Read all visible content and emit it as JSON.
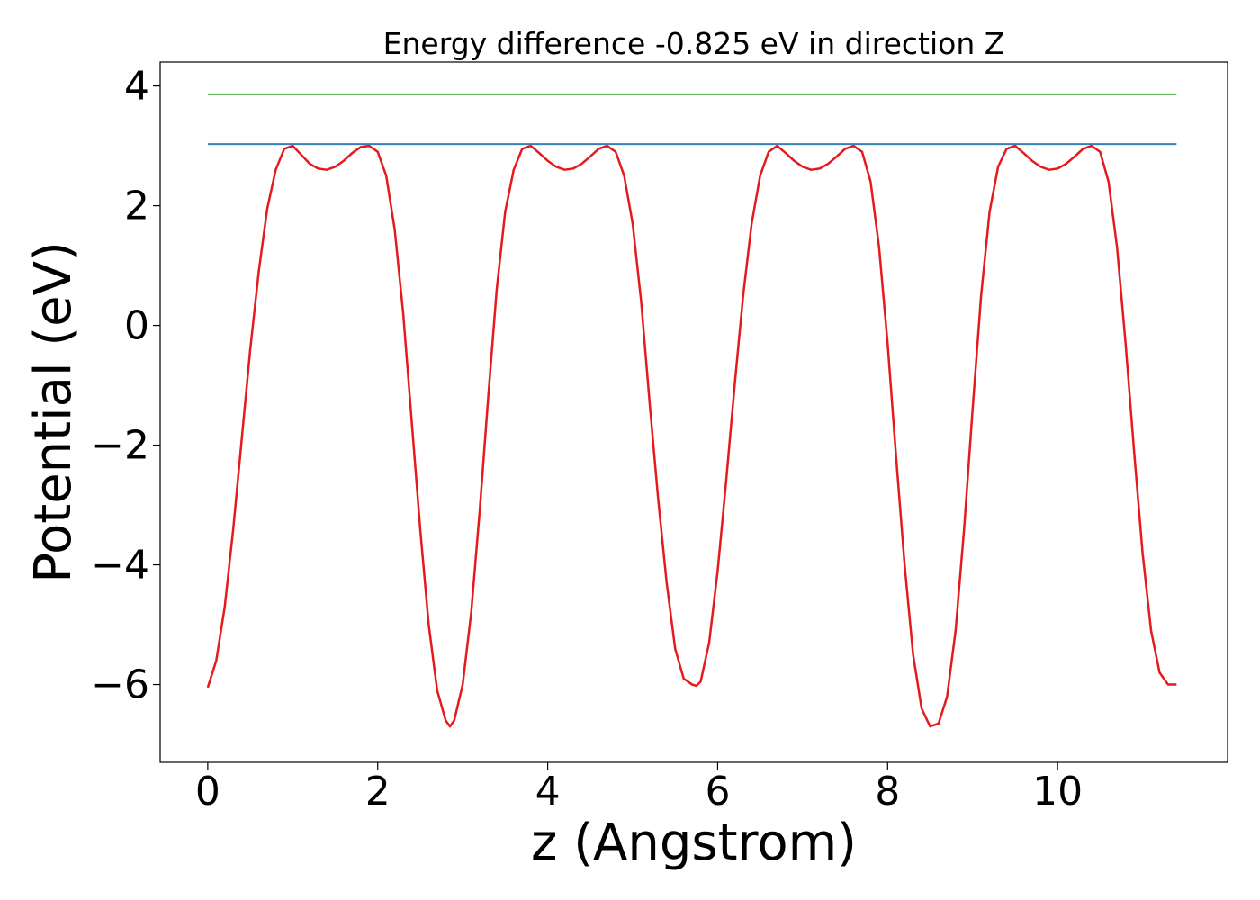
{
  "chart_data": {
    "type": "line",
    "title": "Energy difference -0.825 eV in direction Z",
    "xlabel": "z (Angstrom)",
    "ylabel": "Potential (eV)",
    "xlim": [
      -0.56,
      12.0
    ],
    "ylim": [
      -7.3,
      4.4
    ],
    "xticks": [
      0,
      2,
      4,
      6,
      8,
      10
    ],
    "xtick_labels": [
      "0",
      "2",
      "4",
      "6",
      "8",
      "10"
    ],
    "yticks": [
      -6,
      -4,
      -2,
      0,
      2,
      4
    ],
    "ytick_labels": [
      "−6",
      "−4",
      "−2",
      "0",
      "2",
      "4"
    ],
    "grid": false,
    "legend": "none",
    "colors": {
      "potential": "#e41a1c",
      "level_blue": "#377eb8",
      "level_green": "#4daf4a",
      "axes": "#000000"
    },
    "series": [
      {
        "key": "potential",
        "x": [
          0.0,
          0.1,
          0.2,
          0.3,
          0.4,
          0.5,
          0.6,
          0.7,
          0.8,
          0.9,
          1.0,
          1.1,
          1.2,
          1.3,
          1.4,
          1.5,
          1.6,
          1.7,
          1.8,
          1.9,
          2.0,
          2.1,
          2.2,
          2.3,
          2.4,
          2.5,
          2.6,
          2.7,
          2.8,
          2.85,
          2.9,
          3.0,
          3.1,
          3.2,
          3.3,
          3.4,
          3.5,
          3.6,
          3.7,
          3.8,
          3.9,
          4.0,
          4.1,
          4.2,
          4.3,
          4.4,
          4.5,
          4.6,
          4.7,
          4.8,
          4.9,
          5.0,
          5.1,
          5.2,
          5.3,
          5.4,
          5.5,
          5.6,
          5.7,
          5.75,
          5.8,
          5.9,
          6.0,
          6.1,
          6.2,
          6.3,
          6.4,
          6.5,
          6.6,
          6.7,
          6.8,
          6.9,
          7.0,
          7.1,
          7.2,
          7.3,
          7.4,
          7.5,
          7.6,
          7.7,
          7.8,
          7.9,
          8.0,
          8.1,
          8.2,
          8.3,
          8.4,
          8.5,
          8.6,
          8.7,
          8.8,
          8.9,
          9.0,
          9.1,
          9.2,
          9.3,
          9.4,
          9.5,
          9.6,
          9.7,
          9.8,
          9.9,
          10.0,
          10.1,
          10.2,
          10.3,
          10.4,
          10.5,
          10.6,
          10.7,
          10.8,
          10.9,
          11.0,
          11.1,
          11.2,
          11.3,
          11.4
        ],
        "y": [
          -6.05,
          -5.6,
          -4.7,
          -3.4,
          -1.9,
          -0.4,
          0.9,
          1.95,
          2.6,
          2.95,
          3.0,
          2.85,
          2.7,
          2.62,
          2.6,
          2.65,
          2.75,
          2.88,
          2.98,
          3.0,
          2.9,
          2.5,
          1.6,
          0.2,
          -1.6,
          -3.4,
          -5.0,
          -6.1,
          -6.6,
          -6.7,
          -6.6,
          -6.0,
          -4.8,
          -3.1,
          -1.2,
          0.6,
          1.9,
          2.6,
          2.95,
          3.0,
          2.88,
          2.75,
          2.65,
          2.6,
          2.62,
          2.7,
          2.82,
          2.95,
          3.0,
          2.9,
          2.5,
          1.7,
          0.4,
          -1.3,
          -2.9,
          -4.3,
          -5.4,
          -5.9,
          -6.0,
          -6.02,
          -5.95,
          -5.3,
          -4.1,
          -2.6,
          -1.0,
          0.5,
          1.7,
          2.5,
          2.9,
          3.0,
          2.88,
          2.75,
          2.65,
          2.6,
          2.62,
          2.7,
          2.82,
          2.95,
          3.0,
          2.9,
          2.4,
          1.3,
          -0.3,
          -2.2,
          -4.0,
          -5.5,
          -6.4,
          -6.7,
          -6.65,
          -6.2,
          -5.1,
          -3.4,
          -1.4,
          0.5,
          1.9,
          2.65,
          2.95,
          3.0,
          2.88,
          2.75,
          2.65,
          2.6,
          2.62,
          2.7,
          2.82,
          2.95,
          3.0,
          2.9,
          2.4,
          1.3,
          -0.3,
          -2.1,
          -3.8,
          -5.1,
          -5.8,
          -6.0,
          -6.0
        ]
      },
      {
        "key": "level_blue",
        "x": [
          0.0,
          11.4
        ],
        "y": [
          3.03,
          3.03
        ]
      },
      {
        "key": "level_green",
        "x": [
          0.0,
          11.4
        ],
        "y": [
          3.86,
          3.86
        ]
      }
    ]
  }
}
